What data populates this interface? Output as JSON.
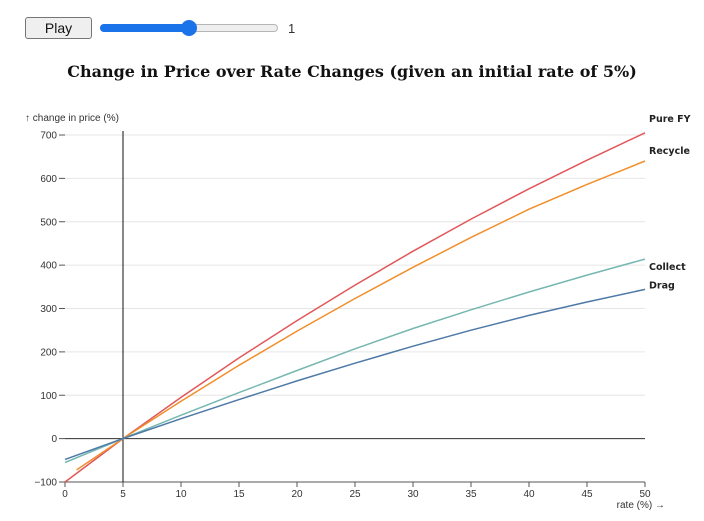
{
  "controls": {
    "play_label": "Play",
    "slider_min": 0,
    "slider_max": 2,
    "slider_value": 1,
    "slider_value_label": "1"
  },
  "chart_data": {
    "type": "line",
    "title": "Change in Price over Rate Changes (given an initial rate of 5%)",
    "xlabel": "rate (%) →",
    "ylabel": "↑ change in price (%)",
    "xlim": [
      0,
      50
    ],
    "ylim": [
      -100,
      700
    ],
    "xticks": [
      0,
      5,
      10,
      15,
      20,
      25,
      30,
      35,
      40,
      45,
      50
    ],
    "yticks": [
      -100,
      0,
      100,
      200,
      300,
      400,
      500,
      600,
      700
    ],
    "grid": "horizontal",
    "reference_lines": {
      "y": 0,
      "x": 5
    },
    "legend": "end-of-line labels",
    "series": [
      {
        "name": "Pure FY",
        "color": "#e15759",
        "x": [
          0,
          5,
          10,
          15,
          20,
          25,
          30,
          35,
          40,
          45,
          50
        ],
        "y": [
          -100,
          0,
          95,
          186,
          272,
          354,
          432,
          506,
          576,
          642,
          705
        ]
      },
      {
        "name": "Recycle",
        "color": "#f28e2b",
        "x": [
          1,
          5,
          10,
          15,
          20,
          25,
          30,
          35,
          40,
          45,
          50
        ],
        "y": [
          -72,
          0,
          86,
          169,
          248,
          323,
          395,
          464,
          529,
          586,
          640
        ]
      },
      {
        "name": "Collect",
        "color": "#76b7b2",
        "x": [
          0,
          5,
          10,
          15,
          20,
          25,
          30,
          35,
          40,
          45,
          50
        ],
        "y": [
          -55,
          0,
          54,
          106,
          157,
          207,
          254,
          297,
          338,
          377,
          414
        ]
      },
      {
        "name": "Drag",
        "color": "#4e79a7",
        "x": [
          0,
          5,
          10,
          15,
          20,
          25,
          30,
          35,
          40,
          45,
          50
        ],
        "y": [
          -48,
          0,
          46,
          90,
          133,
          174,
          213,
          250,
          284,
          315,
          344
        ]
      }
    ]
  }
}
